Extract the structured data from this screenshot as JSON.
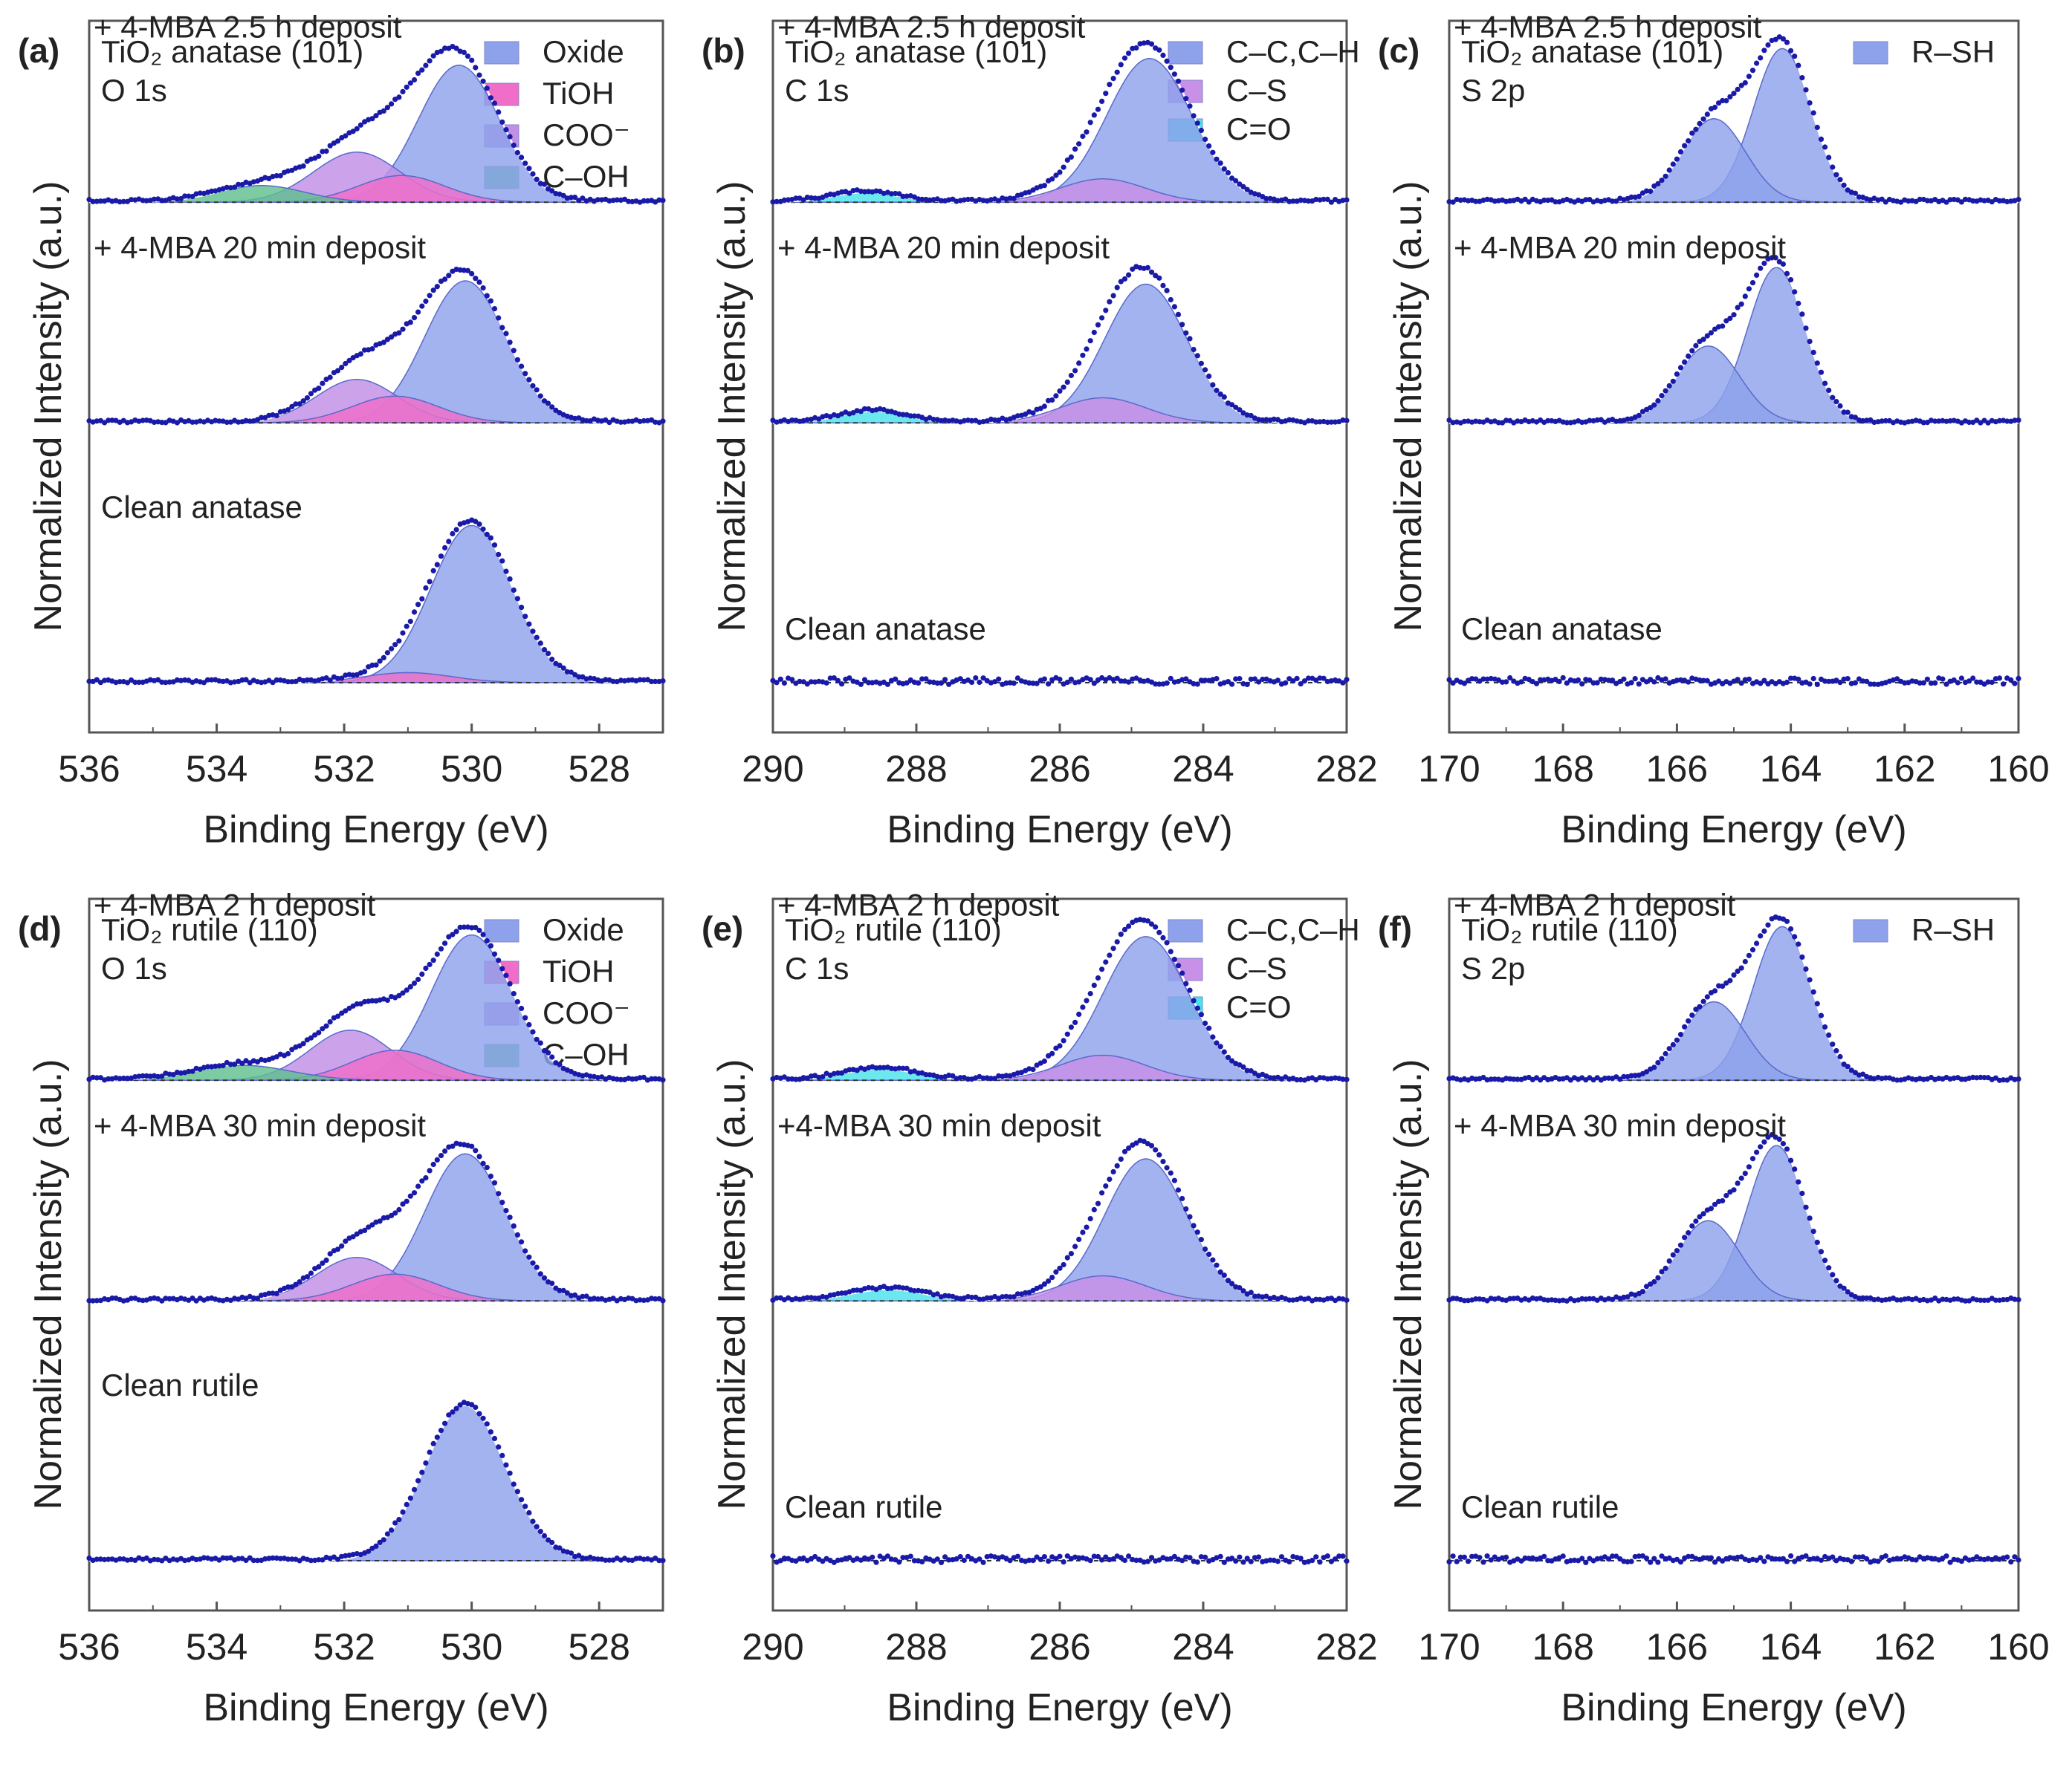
{
  "figure": {
    "x_axis_title": "Binding Energy (eV)",
    "y_axis_title": "Normalized Intensity (a.u.)"
  },
  "colors": {
    "Oxide": "#8ea2ec",
    "TiOH": "#f06ec8",
    "COO⁻": "#c18fe6",
    "C–OH": "#5fbf8f",
    "C–C,C–H": "#8ea2ec",
    "C–S": "#c890e6",
    "C=O": "#49e3ea",
    "R–SH": "#8ea2ec",
    "dots": "#1a1aa8",
    "envelope": "#ffffff",
    "baseline": "#333333",
    "frame": "#555555"
  },
  "chart_data": [
    {
      "panel": "(a)",
      "type": "area",
      "sample": "TiO₂ anatase (101)",
      "region": "O 1s",
      "xlabel": "Binding Energy (eV)",
      "ylabel": "Normalized Intensity (a.u.)",
      "xlim": [
        536,
        527
      ],
      "ticks": [
        536,
        534,
        532,
        530,
        528
      ],
      "legend": [
        "Oxide",
        "TiOH",
        "COO⁻",
        "C–OH"
      ],
      "traces": [
        {
          "name": "+ 4-MBA 2.5 h deposit",
          "components": [
            {
              "name": "C–OH",
              "center": 533.3,
              "height": 0.1,
              "fwhm": 1.6
            },
            {
              "name": "TiOH",
              "center": 531.1,
              "height": 0.16,
              "fwhm": 1.6
            },
            {
              "name": "COO⁻",
              "center": 531.8,
              "height": 0.3,
              "fwhm": 1.6
            },
            {
              "name": "Oxide",
              "center": 530.2,
              "height": 0.82,
              "fwhm": 1.5
            }
          ]
        },
        {
          "name": "+ 4-MBA 20 min deposit",
          "components": [
            {
              "name": "TiOH",
              "center": 531.2,
              "height": 0.16,
              "fwhm": 1.6
            },
            {
              "name": "COO⁻",
              "center": 531.8,
              "height": 0.26,
              "fwhm": 1.5
            },
            {
              "name": "Oxide",
              "center": 530.1,
              "height": 0.85,
              "fwhm": 1.5
            }
          ]
        },
        {
          "name": "Clean anatase",
          "components": [
            {
              "name": "TiOH",
              "center": 531.0,
              "height": 0.06,
              "fwhm": 1.6
            },
            {
              "name": "Oxide",
              "center": 530.0,
              "height": 0.94,
              "fwhm": 1.5
            }
          ]
        }
      ]
    },
    {
      "panel": "(b)",
      "type": "area",
      "sample": "TiO₂ anatase (101)",
      "region": "C 1s",
      "xlabel": "Binding Energy (eV)",
      "ylabel": "Normalized Intensity (a.u.)",
      "xlim": [
        290,
        282
      ],
      "ticks": [
        290,
        288,
        286,
        284,
        282
      ],
      "legend": [
        "C–C,C–H",
        "C–S",
        "C=O"
      ],
      "traces": [
        {
          "name": "+ 4-MBA 2.5 h deposit",
          "components": [
            {
              "name": "C=O",
              "center": 288.7,
              "height": 0.06,
              "fwhm": 1.1
            },
            {
              "name": "C–S",
              "center": 285.4,
              "height": 0.14,
              "fwhm": 1.4
            },
            {
              "name": "C–C,C–H",
              "center": 284.75,
              "height": 0.86,
              "fwhm": 1.4
            }
          ]
        },
        {
          "name": "+ 4-MBA 20 min deposit",
          "components": [
            {
              "name": "C=O",
              "center": 288.6,
              "height": 0.07,
              "fwhm": 1.1
            },
            {
              "name": "C–S",
              "center": 285.4,
              "height": 0.15,
              "fwhm": 1.4
            },
            {
              "name": "C–C,C–H",
              "center": 284.8,
              "height": 0.83,
              "fwhm": 1.35
            }
          ]
        },
        {
          "name": "Clean anatase",
          "components": []
        }
      ]
    },
    {
      "panel": "(c)",
      "type": "area",
      "sample": "TiO₂ anatase (101)",
      "region": "S 2p",
      "xlabel": "Binding Energy (eV)",
      "ylabel": "Normalized Intensity (a.u.)",
      "xlim": [
        170,
        160
      ],
      "ticks": [
        170,
        168,
        166,
        164,
        162,
        160
      ],
      "legend": [
        "R–SH"
      ],
      "traces": [
        {
          "name": "+ 4-MBA 2.5 h deposit",
          "components": [
            {
              "name": "R–SH",
              "center": 165.35,
              "height": 0.5,
              "fwhm": 1.3
            },
            {
              "name": "R–SH",
              "center": 164.15,
              "height": 0.92,
              "fwhm": 1.2
            }
          ]
        },
        {
          "name": "+ 4-MBA 20 min deposit",
          "components": [
            {
              "name": "R–SH",
              "center": 165.45,
              "height": 0.46,
              "fwhm": 1.3
            },
            {
              "name": "R–SH",
              "center": 164.25,
              "height": 0.93,
              "fwhm": 1.2
            }
          ]
        },
        {
          "name": "Clean anatase",
          "components": []
        }
      ]
    },
    {
      "panel": "(d)",
      "type": "area",
      "sample": "TiO₂ rutile (110)",
      "region": "O 1s",
      "xlabel": "Binding Energy (eV)",
      "ylabel": "Normalized Intensity (a.u.)",
      "xlim": [
        536,
        527
      ],
      "ticks": [
        536,
        534,
        532,
        530,
        528
      ],
      "legend": [
        "Oxide",
        "TiOH",
        "COO⁻",
        "C–OH"
      ],
      "traces": [
        {
          "name": "+ 4-MBA 2 h deposit",
          "components": [
            {
              "name": "C–OH",
              "center": 533.6,
              "height": 0.09,
              "fwhm": 1.8
            },
            {
              "name": "TiOH",
              "center": 531.2,
              "height": 0.18,
              "fwhm": 1.6
            },
            {
              "name": "COO⁻",
              "center": 531.9,
              "height": 0.3,
              "fwhm": 1.5
            },
            {
              "name": "Oxide",
              "center": 530.0,
              "height": 0.87,
              "fwhm": 1.5
            }
          ]
        },
        {
          "name": "+ 4-MBA 30 min deposit",
          "components": [
            {
              "name": "TiOH",
              "center": 531.2,
              "height": 0.16,
              "fwhm": 1.6
            },
            {
              "name": "COO⁻",
              "center": 531.8,
              "height": 0.26,
              "fwhm": 1.5
            },
            {
              "name": "Oxide",
              "center": 530.1,
              "height": 0.88,
              "fwhm": 1.5
            }
          ]
        },
        {
          "name": "Clean rutile",
          "components": [
            {
              "name": "Oxide",
              "center": 530.1,
              "height": 0.93,
              "fwhm": 1.5
            }
          ]
        }
      ]
    },
    {
      "panel": "(e)",
      "type": "area",
      "sample": "TiO₂ rutile (110)",
      "region": "C 1s",
      "xlabel": "Binding Energy (eV)",
      "ylabel": "Normalized Intensity (a.u.)",
      "xlim": [
        290,
        282
      ],
      "ticks": [
        290,
        288,
        286,
        284,
        282
      ],
      "legend": [
        "C–C,C–H",
        "C–S",
        "C=O"
      ],
      "traces": [
        {
          "name": "+ 4-MBA 2 h deposit",
          "components": [
            {
              "name": "C=O",
              "center": 288.5,
              "height": 0.07,
              "fwhm": 1.2
            },
            {
              "name": "C–S",
              "center": 285.4,
              "height": 0.15,
              "fwhm": 1.4
            },
            {
              "name": "C–C,C–H",
              "center": 284.8,
              "height": 0.86,
              "fwhm": 1.4
            }
          ]
        },
        {
          "name": "+4-MBA 30 min deposit",
          "components": [
            {
              "name": "C=O",
              "center": 288.4,
              "height": 0.07,
              "fwhm": 1.2
            },
            {
              "name": "C–S",
              "center": 285.4,
              "height": 0.15,
              "fwhm": 1.4
            },
            {
              "name": "C–C,C–H",
              "center": 284.8,
              "height": 0.85,
              "fwhm": 1.35
            }
          ]
        },
        {
          "name": "Clean rutile",
          "components": []
        }
      ]
    },
    {
      "panel": "(f)",
      "type": "area",
      "sample": "TiO₂ rutile (110)",
      "region": "S 2p",
      "xlabel": "Binding Energy (eV)",
      "ylabel": "Normalized Intensity (a.u.)",
      "xlim": [
        170,
        160
      ],
      "ticks": [
        170,
        168,
        166,
        164,
        162,
        160
      ],
      "legend": [
        "R–SH"
      ],
      "traces": [
        {
          "name": "+ 4-MBA 2 h deposit",
          "components": [
            {
              "name": "R–SH",
              "center": 165.35,
              "height": 0.47,
              "fwhm": 1.3
            },
            {
              "name": "R–SH",
              "center": 164.15,
              "height": 0.92,
              "fwhm": 1.2
            }
          ]
        },
        {
          "name": "+ 4-MBA 30 min deposit",
          "components": [
            {
              "name": "R–SH",
              "center": 165.45,
              "height": 0.48,
              "fwhm": 1.3
            },
            {
              "name": "R–SH",
              "center": 164.25,
              "height": 0.93,
              "fwhm": 1.2
            }
          ]
        },
        {
          "name": "Clean rutile",
          "components": []
        }
      ]
    }
  ]
}
